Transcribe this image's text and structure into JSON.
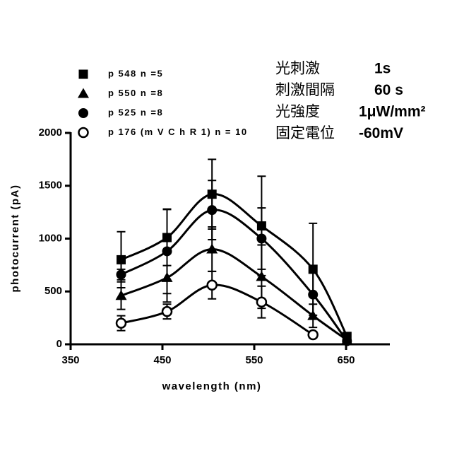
{
  "chart_data": {
    "type": "scatter",
    "x_label": "wavelength (nm)",
    "y_label": "photocurrent (pA)",
    "xlim": [
      350,
      700
    ],
    "xticks": [
      350,
      450,
      550,
      650
    ],
    "ylim": [
      0,
      2000
    ],
    "yticks": [
      0,
      500,
      1000,
      1500,
      2000
    ],
    "x": [
      405,
      455,
      504,
      558,
      614,
      651
    ],
    "series": [
      {
        "name": "p 548   n =5",
        "marker": "square",
        "color": "#000000",
        "values": [
          800,
          1010,
          1420,
          1120,
          710,
          75
        ],
        "errors": [
          265,
          265,
          330,
          470,
          435,
          20
        ]
      },
      {
        "name": "p 550   n =8",
        "marker": "triangle",
        "color": "#000000",
        "values": [
          460,
          630,
          900,
          640,
          270,
          40
        ],
        "errors": [
          130,
          230,
          210,
          300,
          110,
          15
        ]
      },
      {
        "name": "p 525   n =8",
        "marker": "circle",
        "color": "#000000",
        "values": [
          660,
          880,
          1270,
          1000,
          470,
          30
        ],
        "errors": [
          50,
          400,
          280,
          290,
          230,
          15
        ]
      },
      {
        "name": "p 176 (m V C h R 1)   n = 10",
        "marker": "open-circle",
        "color": "#000000",
        "values": [
          200,
          310,
          560,
          400,
          90,
          null
        ],
        "errors": [
          70,
          70,
          130,
          150,
          30,
          null
        ]
      }
    ],
    "annotations": [
      {
        "label": "光刺激",
        "value": "1s"
      },
      {
        "label": "刺激間隔",
        "value": "60 s"
      },
      {
        "label": "光強度",
        "value": "1μW/mm²"
      },
      {
        "label": "固定電位",
        "value": "-60mV"
      }
    ]
  }
}
